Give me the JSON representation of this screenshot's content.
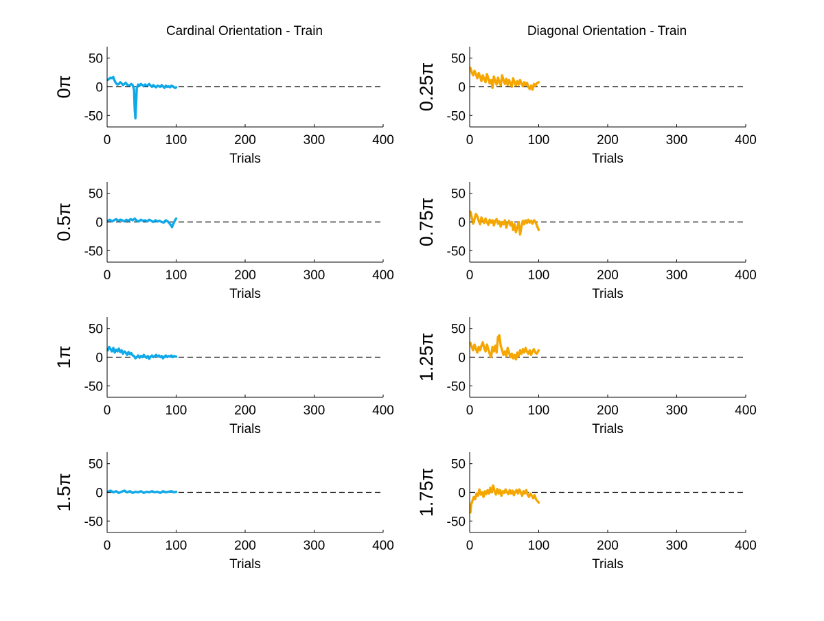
{
  "figure": {
    "column_titles": [
      "Cardinal Orientation - Train",
      "Diagonal Orientation - Train"
    ]
  },
  "colors": {
    "cardinal": "#0fa8e8",
    "diagonal": "#f5a600",
    "axis": "#000000"
  },
  "chart_data": [
    {
      "type": "line",
      "column": 0,
      "row": 0,
      "ylabel": "0π",
      "xlabel": "Trials",
      "xlim": [
        0,
        400
      ],
      "ylim": [
        -70,
        70
      ],
      "xticks": [
        "0",
        "100",
        "200",
        "300",
        "400"
      ],
      "yticks": [
        "50",
        "0",
        "-50"
      ],
      "grid": false,
      "reference_line": 0,
      "series": [
        {
          "color": "#0fa8e8",
          "x": [
            1,
            3,
            5,
            7,
            9,
            11,
            13,
            15,
            17,
            19,
            21,
            23,
            25,
            27,
            29,
            31,
            33,
            35,
            37,
            39,
            40,
            41,
            42,
            43,
            45,
            47,
            49,
            51,
            53,
            55,
            57,
            59,
            61,
            63,
            65,
            67,
            69,
            71,
            73,
            75,
            77,
            79,
            81,
            83,
            85,
            87,
            89,
            91,
            93,
            95,
            97,
            99,
            100
          ],
          "y": [
            12,
            14,
            16,
            15,
            17,
            10,
            6,
            4,
            5,
            8,
            6,
            3,
            5,
            7,
            4,
            2,
            3,
            5,
            3,
            -5,
            -40,
            -55,
            -30,
            -2,
            4,
            2,
            5,
            3,
            1,
            4,
            2,
            3,
            5,
            2,
            0,
            3,
            1,
            -1,
            2,
            1,
            0,
            3,
            1,
            -2,
            2,
            0,
            1,
            -1,
            2,
            1,
            -1,
            -2,
            -1
          ]
        }
      ]
    },
    {
      "type": "line",
      "column": 0,
      "row": 1,
      "ylabel": "0.5π",
      "xlabel": "Trials",
      "xlim": [
        0,
        400
      ],
      "ylim": [
        -70,
        70
      ],
      "xticks": [
        "0",
        "100",
        "200",
        "300",
        "400"
      ],
      "yticks": [
        "50",
        "0",
        "-50"
      ],
      "grid": false,
      "reference_line": 0,
      "series": [
        {
          "color": "#0fa8e8",
          "x": [
            1,
            4,
            7,
            10,
            13,
            16,
            19,
            22,
            25,
            28,
            31,
            34,
            37,
            40,
            43,
            46,
            49,
            52,
            55,
            58,
            61,
            64,
            67,
            70,
            73,
            76,
            79,
            82,
            85,
            88,
            90,
            92,
            94,
            96,
            98,
            100
          ],
          "y": [
            2,
            4,
            1,
            3,
            5,
            2,
            4,
            3,
            1,
            4,
            2,
            5,
            3,
            6,
            2,
            1,
            4,
            2,
            3,
            1,
            4,
            2,
            0,
            3,
            1,
            2,
            0,
            -1,
            3,
            1,
            -2,
            -5,
            -9,
            -3,
            2,
            6
          ]
        }
      ]
    },
    {
      "type": "line",
      "column": 0,
      "row": 2,
      "ylabel": "1π",
      "xlabel": "Trials",
      "xlim": [
        0,
        400
      ],
      "ylim": [
        -70,
        70
      ],
      "xticks": [
        "0",
        "100",
        "200",
        "300",
        "400"
      ],
      "yticks": [
        "50",
        "0",
        "-50"
      ],
      "grid": false,
      "reference_line": 0,
      "series": [
        {
          "color": "#0fa8e8",
          "x": [
            1,
            3,
            5,
            7,
            9,
            11,
            13,
            15,
            17,
            19,
            21,
            23,
            25,
            27,
            29,
            31,
            33,
            35,
            37,
            39,
            41,
            43,
            45,
            47,
            49,
            51,
            53,
            55,
            57,
            59,
            61,
            63,
            65,
            67,
            69,
            71,
            73,
            75,
            77,
            79,
            81,
            83,
            85,
            87,
            89,
            91,
            93,
            95,
            97,
            100
          ],
          "y": [
            12,
            18,
            14,
            10,
            16,
            8,
            13,
            10,
            15,
            9,
            12,
            6,
            10,
            8,
            4,
            9,
            5,
            7,
            3,
            2,
            -2,
            0,
            3,
            -1,
            2,
            0,
            4,
            1,
            -1,
            2,
            -3,
            1,
            3,
            0,
            2,
            4,
            1,
            3,
            0,
            2,
            -2,
            1,
            3,
            0,
            2,
            1,
            3,
            0,
            2,
            1
          ]
        }
      ]
    },
    {
      "type": "line",
      "column": 0,
      "row": 3,
      "ylabel": "1.5π",
      "xlabel": "Trials",
      "xlim": [
        0,
        400
      ],
      "ylim": [
        -70,
        70
      ],
      "xticks": [
        "0",
        "100",
        "200",
        "300",
        "400"
      ],
      "yticks": [
        "50",
        "0",
        "-50"
      ],
      "grid": false,
      "reference_line": 0,
      "series": [
        {
          "color": "#0fa8e8",
          "x": [
            1,
            5,
            9,
            13,
            17,
            21,
            25,
            29,
            33,
            37,
            41,
            45,
            49,
            53,
            57,
            61,
            65,
            69,
            73,
            77,
            81,
            85,
            89,
            93,
            97,
            100
          ],
          "y": [
            1,
            3,
            0,
            2,
            -1,
            1,
            3,
            0,
            2,
            -1,
            1,
            0,
            2,
            -1,
            1,
            0,
            2,
            0,
            1,
            -1,
            2,
            0,
            1,
            2,
            0,
            1
          ]
        }
      ]
    },
    {
      "type": "line",
      "column": 1,
      "row": 0,
      "ylabel": "0.25π",
      "xlabel": "Trials",
      "xlim": [
        0,
        400
      ],
      "ylim": [
        -70,
        70
      ],
      "xticks": [
        "0",
        "100",
        "200",
        "300",
        "400"
      ],
      "yticks": [
        "50",
        "0",
        "-50"
      ],
      "grid": false,
      "reference_line": 0,
      "series": [
        {
          "color": "#f5a600",
          "x": [
            1,
            3,
            5,
            7,
            9,
            11,
            13,
            15,
            17,
            19,
            21,
            23,
            25,
            27,
            29,
            31,
            33,
            35,
            37,
            39,
            41,
            43,
            45,
            47,
            49,
            51,
            53,
            55,
            57,
            59,
            61,
            63,
            65,
            67,
            69,
            71,
            73,
            75,
            77,
            79,
            81,
            83,
            85,
            87,
            89,
            91,
            93,
            95,
            97,
            100
          ],
          "y": [
            33,
            25,
            20,
            28,
            22,
            15,
            24,
            18,
            10,
            20,
            14,
            8,
            22,
            15,
            6,
            12,
            -2,
            18,
            10,
            4,
            16,
            8,
            2,
            20,
            12,
            5,
            14,
            3,
            12,
            6,
            0,
            15,
            8,
            2,
            10,
            4,
            12,
            6,
            1,
            8,
            3,
            7,
            0,
            -4,
            2,
            -5,
            5,
            1,
            6,
            8
          ]
        }
      ]
    },
    {
      "type": "line",
      "column": 1,
      "row": 1,
      "ylabel": "0.75π",
      "xlabel": "Trials",
      "xlim": [
        0,
        400
      ],
      "ylim": [
        -70,
        70
      ],
      "xticks": [
        "0",
        "100",
        "200",
        "300",
        "400"
      ],
      "yticks": [
        "50",
        "0",
        "-50"
      ],
      "grid": false,
      "reference_line": 0,
      "series": [
        {
          "color": "#f5a600",
          "x": [
            1,
            3,
            5,
            7,
            9,
            11,
            13,
            15,
            17,
            19,
            21,
            23,
            25,
            27,
            29,
            31,
            33,
            35,
            37,
            39,
            41,
            43,
            45,
            47,
            49,
            51,
            53,
            55,
            57,
            59,
            61,
            63,
            65,
            67,
            69,
            71,
            73,
            75,
            77,
            79,
            81,
            83,
            85,
            87,
            89,
            91,
            93,
            95,
            97,
            100
          ],
          "y": [
            18,
            8,
            -3,
            5,
            14,
            10,
            2,
            -4,
            8,
            3,
            -2,
            6,
            0,
            -5,
            4,
            -1,
            3,
            -6,
            2,
            5,
            -3,
            1,
            -8,
            0,
            -4,
            3,
            -10,
            -2,
            2,
            -6,
            0,
            -14,
            -4,
            -18,
            -10,
            0,
            -22,
            -8,
            2,
            -4,
            3,
            -2,
            4,
            -1,
            2,
            -3,
            3,
            1,
            -5,
            -14
          ]
        }
      ]
    },
    {
      "type": "line",
      "column": 1,
      "row": 2,
      "ylabel": "1.25π",
      "xlabel": "Trials",
      "xlim": [
        0,
        400
      ],
      "ylim": [
        -70,
        70
      ],
      "xticks": [
        "0",
        "100",
        "200",
        "300",
        "400"
      ],
      "yticks": [
        "50",
        "0",
        "-50"
      ],
      "grid": false,
      "reference_line": 0,
      "series": [
        {
          "color": "#f5a600",
          "x": [
            1,
            3,
            5,
            7,
            9,
            11,
            13,
            15,
            17,
            19,
            21,
            23,
            25,
            27,
            29,
            31,
            33,
            35,
            37,
            39,
            41,
            43,
            45,
            47,
            49,
            51,
            53,
            55,
            57,
            59,
            61,
            63,
            65,
            67,
            69,
            71,
            73,
            75,
            77,
            79,
            81,
            83,
            85,
            87,
            89,
            91,
            93,
            95,
            97,
            100
          ],
          "y": [
            25,
            18,
            12,
            22,
            15,
            8,
            18,
            12,
            20,
            26,
            16,
            10,
            22,
            14,
            6,
            0,
            18,
            10,
            20,
            8,
            35,
            38,
            20,
            12,
            4,
            10,
            2,
            16,
            8,
            0,
            6,
            -2,
            4,
            -4,
            8,
            2,
            12,
            6,
            14,
            8,
            16,
            10,
            6,
            12,
            4,
            10,
            14,
            8,
            6,
            12
          ]
        }
      ]
    },
    {
      "type": "line",
      "column": 1,
      "row": 3,
      "ylabel": "1.75π",
      "xlabel": "Trials",
      "xlim": [
        0,
        400
      ],
      "ylim": [
        -70,
        70
      ],
      "xticks": [
        "0",
        "100",
        "200",
        "300",
        "400"
      ],
      "yticks": [
        "50",
        "0",
        "-50"
      ],
      "grid": false,
      "reference_line": 0,
      "series": [
        {
          "color": "#f5a600",
          "x": [
            1,
            2,
            4,
            6,
            8,
            10,
            12,
            14,
            16,
            18,
            20,
            22,
            24,
            26,
            28,
            30,
            32,
            34,
            36,
            38,
            40,
            42,
            44,
            46,
            48,
            50,
            52,
            54,
            56,
            58,
            60,
            62,
            64,
            66,
            68,
            70,
            72,
            74,
            76,
            78,
            80,
            82,
            84,
            86,
            88,
            90,
            92,
            94,
            96,
            98,
            100
          ],
          "y": [
            -35,
            -22,
            -15,
            -8,
            -12,
            -2,
            -6,
            5,
            -4,
            0,
            -8,
            2,
            -3,
            4,
            -2,
            8,
            0,
            12,
            2,
            -4,
            6,
            -2,
            4,
            -6,
            2,
            -1,
            5,
            0,
            -3,
            4,
            -2,
            3,
            -5,
            1,
            4,
            -2,
            5,
            0,
            -6,
            2,
            -2,
            4,
            -4,
            -8,
            -2,
            -6,
            -10,
            -5,
            -12,
            -15,
            -18
          ]
        }
      ]
    }
  ]
}
